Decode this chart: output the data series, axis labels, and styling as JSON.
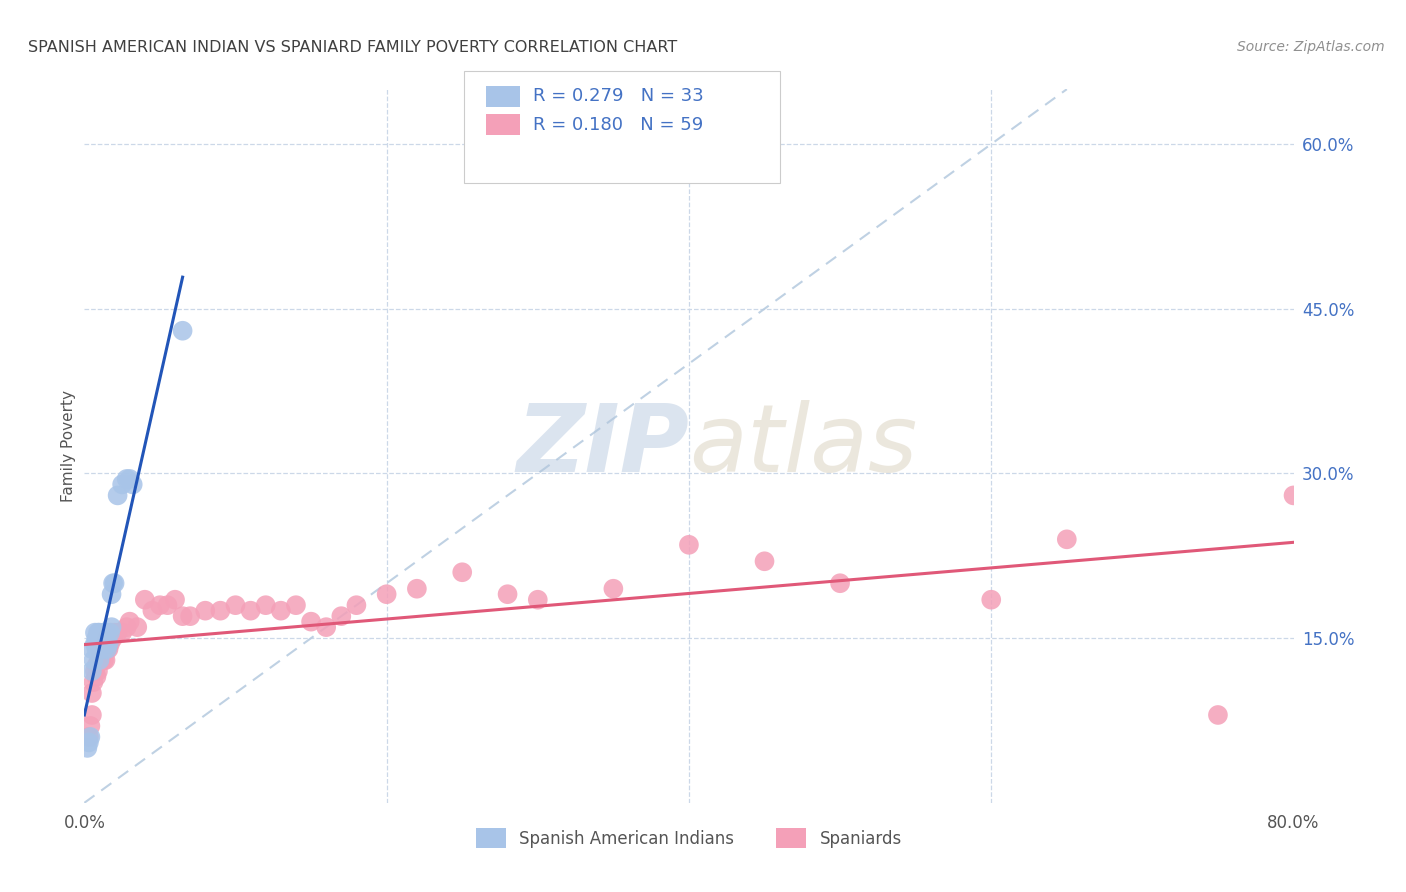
{
  "title": "SPANISH AMERICAN INDIAN VS SPANIARD FAMILY POVERTY CORRELATION CHART",
  "source": "Source: ZipAtlas.com",
  "ylabel": "Family Poverty",
  "xlim": [
    0.0,
    0.8
  ],
  "ylim": [
    0.0,
    0.65
  ],
  "xtick_vals": [
    0.0,
    0.2,
    0.4,
    0.6,
    0.8
  ],
  "xtick_labels": [
    "0.0%",
    "",
    "",
    "",
    "80.0%"
  ],
  "ytick_vals_right": [
    0.15,
    0.3,
    0.45,
    0.6
  ],
  "ytick_labels_right": [
    "15.0%",
    "30.0%",
    "45.0%",
    "60.0%"
  ],
  "R_blue": 0.279,
  "N_blue": 33,
  "R_pink": 0.18,
  "N_pink": 59,
  "legend_label_blue": "Spanish American Indians",
  "legend_label_pink": "Spaniards",
  "color_blue": "#a8c4e8",
  "color_pink": "#f4a0b8",
  "color_line_blue": "#2255b8",
  "color_line_pink": "#e05878",
  "color_diag_line": "#b8cce0",
  "color_title": "#404040",
  "color_source": "#909090",
  "color_legend_text": "#4472c4",
  "watermark_color": "#ccd8ee",
  "background_color": "#ffffff",
  "grid_color": "#ccd8e8",
  "blue_x": [
    0.002,
    0.003,
    0.004,
    0.005,
    0.005,
    0.006,
    0.007,
    0.007,
    0.008,
    0.008,
    0.009,
    0.01,
    0.01,
    0.01,
    0.011,
    0.012,
    0.013,
    0.013,
    0.014,
    0.015,
    0.015,
    0.016,
    0.017,
    0.018,
    0.018,
    0.019,
    0.02,
    0.022,
    0.025,
    0.028,
    0.03,
    0.032,
    0.065
  ],
  "blue_y": [
    0.05,
    0.055,
    0.06,
    0.12,
    0.14,
    0.13,
    0.145,
    0.155,
    0.14,
    0.15,
    0.155,
    0.13,
    0.145,
    0.155,
    0.145,
    0.15,
    0.14,
    0.155,
    0.145,
    0.14,
    0.155,
    0.145,
    0.155,
    0.16,
    0.19,
    0.2,
    0.2,
    0.28,
    0.29,
    0.295,
    0.295,
    0.29,
    0.43
  ],
  "pink_x": [
    0.003,
    0.004,
    0.005,
    0.005,
    0.006,
    0.007,
    0.008,
    0.008,
    0.009,
    0.01,
    0.01,
    0.011,
    0.012,
    0.013,
    0.013,
    0.014,
    0.015,
    0.015,
    0.016,
    0.017,
    0.018,
    0.019,
    0.02,
    0.022,
    0.025,
    0.028,
    0.03,
    0.035,
    0.04,
    0.045,
    0.05,
    0.055,
    0.06,
    0.065,
    0.07,
    0.08,
    0.09,
    0.1,
    0.11,
    0.12,
    0.13,
    0.14,
    0.15,
    0.16,
    0.17,
    0.18,
    0.2,
    0.22,
    0.25,
    0.28,
    0.3,
    0.35,
    0.4,
    0.45,
    0.5,
    0.6,
    0.65,
    0.75,
    0.8
  ],
  "pink_y": [
    0.06,
    0.07,
    0.08,
    0.1,
    0.11,
    0.12,
    0.115,
    0.125,
    0.12,
    0.13,
    0.14,
    0.13,
    0.135,
    0.13,
    0.14,
    0.13,
    0.14,
    0.15,
    0.14,
    0.145,
    0.155,
    0.15,
    0.155,
    0.155,
    0.155,
    0.16,
    0.165,
    0.16,
    0.185,
    0.175,
    0.18,
    0.18,
    0.185,
    0.17,
    0.17,
    0.175,
    0.175,
    0.18,
    0.175,
    0.18,
    0.175,
    0.18,
    0.165,
    0.16,
    0.17,
    0.18,
    0.19,
    0.195,
    0.21,
    0.19,
    0.185,
    0.195,
    0.235,
    0.22,
    0.2,
    0.185,
    0.24,
    0.08,
    0.28
  ]
}
